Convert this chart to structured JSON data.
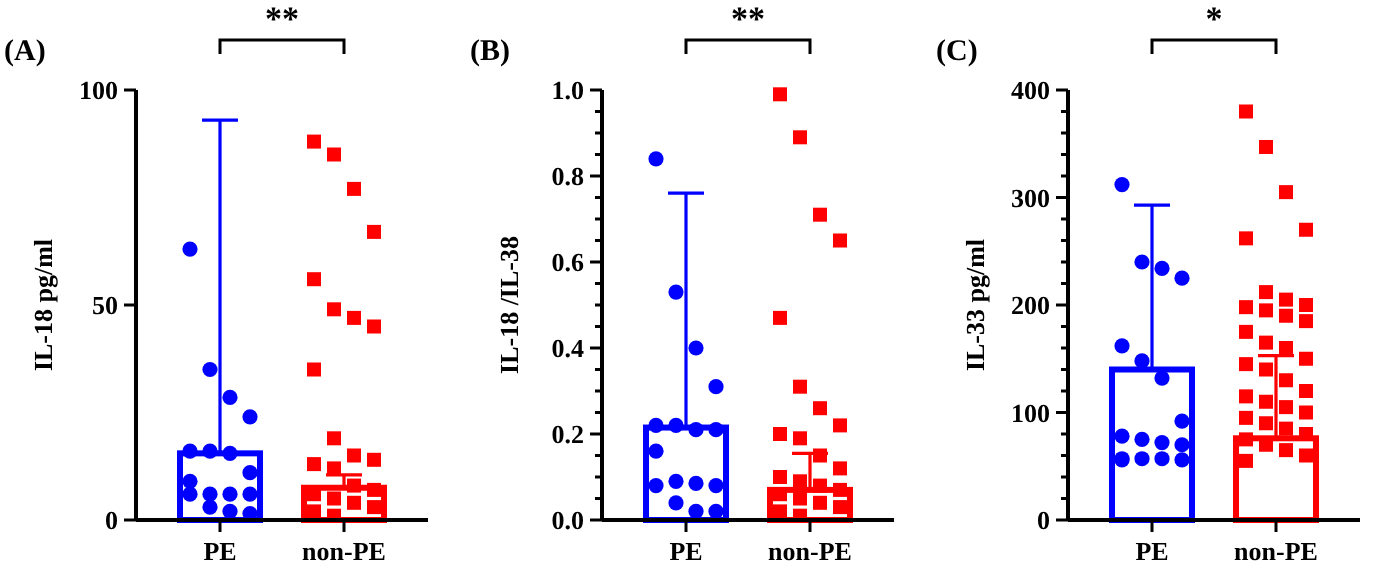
{
  "chart_data": [
    {
      "type": "bar",
      "title": "(A)",
      "ylabel": "IL-18 pg/ml",
      "categories": [
        "PE",
        "non-PE"
      ],
      "ylim": [
        0,
        100
      ],
      "yticks": [
        0,
        50,
        100
      ],
      "annotations": [
        "**"
      ],
      "series": [
        {
          "type": "bar",
          "colors": [
            "#0000ff",
            "#ff0000"
          ],
          "values": [
            15.5,
            7.5
          ],
          "errors": [
            [
              15.5,
              93
            ],
            [
              7.5,
              10.5
            ]
          ]
        },
        {
          "type": "scatter",
          "marker": "circle",
          "color": "#0000ff",
          "x": [
            "PE",
            "PE",
            "PE",
            "PE",
            "PE",
            "PE",
            "PE",
            "PE",
            "PE",
            "PE",
            "PE",
            "PE",
            "PE",
            "PE",
            "PE",
            "PE"
          ],
          "values": [
            63,
            35,
            28.5,
            24,
            16,
            16,
            15.5,
            11,
            9,
            6,
            6,
            6,
            6,
            3,
            2,
            1.5
          ]
        },
        {
          "type": "scatter",
          "marker": "square",
          "color": "#ff0000",
          "x": [
            "non-PE",
            "non-PE",
            "non-PE",
            "non-PE",
            "non-PE",
            "non-PE",
            "non-PE",
            "non-PE",
            "non-PE",
            "non-PE",
            "non-PE",
            "non-PE",
            "non-PE",
            "non-PE",
            "non-PE",
            "non-PE",
            "non-PE",
            "non-PE",
            "non-PE",
            "non-PE",
            "non-PE",
            "non-PE"
          ],
          "values": [
            88,
            85,
            77,
            67,
            56,
            49,
            47,
            45,
            35,
            19,
            15,
            14,
            13,
            12,
            8,
            7,
            6,
            5,
            4,
            3,
            2,
            1
          ]
        }
      ]
    },
    {
      "type": "bar",
      "title": "(B)",
      "ylabel": "IL-18 /IL-38",
      "categories": [
        "PE",
        "non-PE"
      ],
      "ylim": [
        0,
        1
      ],
      "yticks": [
        {
          "value": 0,
          "label": "0.0"
        },
        {
          "value": 0.05,
          "label": null
        },
        {
          "value": 0.1,
          "label": null
        },
        {
          "value": 0.15,
          "label": null
        },
        {
          "value": 0.2,
          "label": "0.2"
        },
        {
          "value": 0.25,
          "label": null
        },
        {
          "value": 0.3,
          "label": null
        },
        {
          "value": 0.35,
          "label": null
        },
        {
          "value": 0.4,
          "label": "0.4"
        },
        {
          "value": 0.45,
          "label": null
        },
        {
          "value": 0.5,
          "label": null
        },
        {
          "value": 0.55,
          "label": null
        },
        {
          "value": 0.6,
          "label": "0.6"
        },
        {
          "value": 0.65,
          "label": null
        },
        {
          "value": 0.7,
          "label": null
        },
        {
          "value": 0.75,
          "label": null
        },
        {
          "value": 0.8,
          "label": "0.8"
        },
        {
          "value": 0.85,
          "label": null
        },
        {
          "value": 0.9,
          "label": null
        },
        {
          "value": 0.95,
          "label": null
        },
        {
          "value": 1,
          "label": "1.0"
        }
      ],
      "annotations": [
        "**"
      ],
      "series": [
        {
          "type": "bar",
          "colors": [
            "#0000ff",
            "#ff0000"
          ],
          "values": [
            0.215,
            0.07
          ],
          "errors": [
            [
              0.215,
              0.76
            ],
            [
              0.07,
              0.155
            ]
          ]
        },
        {
          "type": "scatter",
          "marker": "circle",
          "color": "#0000ff",
          "x": [
            "PE",
            "PE",
            "PE",
            "PE",
            "PE",
            "PE",
            "PE",
            "PE",
            "PE",
            "PE",
            "PE",
            "PE",
            "PE",
            "PE",
            "PE",
            "PE"
          ],
          "values": [
            0.84,
            0.53,
            0.4,
            0.31,
            0.22,
            0.22,
            0.21,
            0.21,
            0.16,
            0.09,
            0.085,
            0.08,
            0.08,
            0.04,
            0.02,
            0.02
          ]
        },
        {
          "type": "scatter",
          "marker": "square",
          "color": "#ff0000",
          "x": [
            "non-PE",
            "non-PE",
            "non-PE",
            "non-PE",
            "non-PE",
            "non-PE",
            "non-PE",
            "non-PE",
            "non-PE",
            "non-PE",
            "non-PE",
            "non-PE",
            "non-PE",
            "non-PE",
            "non-PE",
            "non-PE",
            "non-PE",
            "non-PE",
            "non-PE",
            "non-PE",
            "non-PE",
            "non-PE"
          ],
          "values": [
            0.99,
            0.89,
            0.71,
            0.65,
            0.47,
            0.31,
            0.26,
            0.22,
            0.2,
            0.19,
            0.15,
            0.12,
            0.1,
            0.09,
            0.08,
            0.07,
            0.06,
            0.05,
            0.04,
            0.03,
            0.02,
            0.01
          ]
        }
      ]
    },
    {
      "type": "bar",
      "title": "(C)",
      "ylabel": "IL-33 pg/ml",
      "categories": [
        "PE",
        "non-PE"
      ],
      "ylim": [
        0,
        400
      ],
      "yticks": [
        0,
        {
          "value": 20,
          "label": null
        },
        {
          "value": 40,
          "label": null
        },
        {
          "value": 60,
          "label": null
        },
        {
          "value": 80,
          "label": null
        },
        100,
        {
          "value": 120,
          "label": null
        },
        {
          "value": 140,
          "label": null
        },
        {
          "value": 160,
          "label": null
        },
        {
          "value": 180,
          "label": null
        },
        200,
        {
          "value": 220,
          "label": null
        },
        {
          "value": 240,
          "label": null
        },
        {
          "value": 260,
          "label": null
        },
        {
          "value": 280,
          "label": null
        },
        300,
        {
          "value": 320,
          "label": null
        },
        {
          "value": 340,
          "label": null
        },
        {
          "value": 360,
          "label": null
        },
        {
          "value": 380,
          "label": null
        },
        400
      ],
      "annotations": [
        "*"
      ],
      "series": [
        {
          "type": "bar",
          "colors": [
            "#0000ff",
            "#ff0000"
          ],
          "values": [
            140,
            76
          ],
          "errors": [
            [
              140,
              293
            ],
            [
              76,
              153
            ]
          ]
        },
        {
          "type": "scatter",
          "marker": "circle",
          "color": "#0000ff",
          "x": [
            "PE",
            "PE",
            "PE",
            "PE",
            "PE",
            "PE",
            "PE",
            "PE",
            "PE",
            "PE",
            "PE",
            "PE",
            "PE",
            "PE",
            "PE",
            "PE",
            "PE"
          ],
          "values": [
            312,
            240,
            234,
            225,
            162,
            148,
            132,
            92,
            78,
            75,
            72,
            70,
            57,
            57,
            57,
            56,
            56
          ]
        },
        {
          "type": "scatter",
          "marker": "square",
          "color": "#ff0000",
          "x": [
            "non-PE",
            "non-PE",
            "non-PE",
            "non-PE",
            "non-PE",
            "non-PE",
            "non-PE",
            "non-PE",
            "non-PE",
            "non-PE",
            "non-PE",
            "non-PE",
            "non-PE",
            "non-PE",
            "non-PE",
            "non-PE",
            "non-PE",
            "non-PE",
            "non-PE",
            "non-PE",
            "non-PE",
            "non-PE",
            "non-PE",
            "non-PE",
            "non-PE",
            "non-PE",
            "non-PE",
            "non-PE",
            "non-PE",
            "non-PE",
            "non-PE",
            "non-PE",
            "non-PE"
          ],
          "values": [
            380,
            347,
            305,
            270,
            262,
            212,
            205,
            200,
            198,
            195,
            190,
            185,
            175,
            165,
            160,
            150,
            145,
            140,
            130,
            120,
            115,
            110,
            105,
            100,
            95,
            90,
            85,
            80,
            75,
            70,
            65,
            60,
            55
          ]
        }
      ]
    }
  ]
}
